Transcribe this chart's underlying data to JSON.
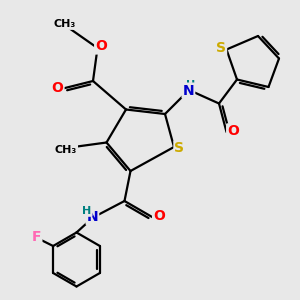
{
  "background_color": "#e8e8e8",
  "bond_color": "#000000",
  "atom_colors": {
    "O": "#ff0000",
    "N": "#0000cc",
    "S": "#ccaa00",
    "F": "#ff69b4",
    "C": "#000000",
    "H": "#008080"
  },
  "line_width": 1.6,
  "figsize": [
    3.0,
    3.0
  ],
  "dpi": 100
}
